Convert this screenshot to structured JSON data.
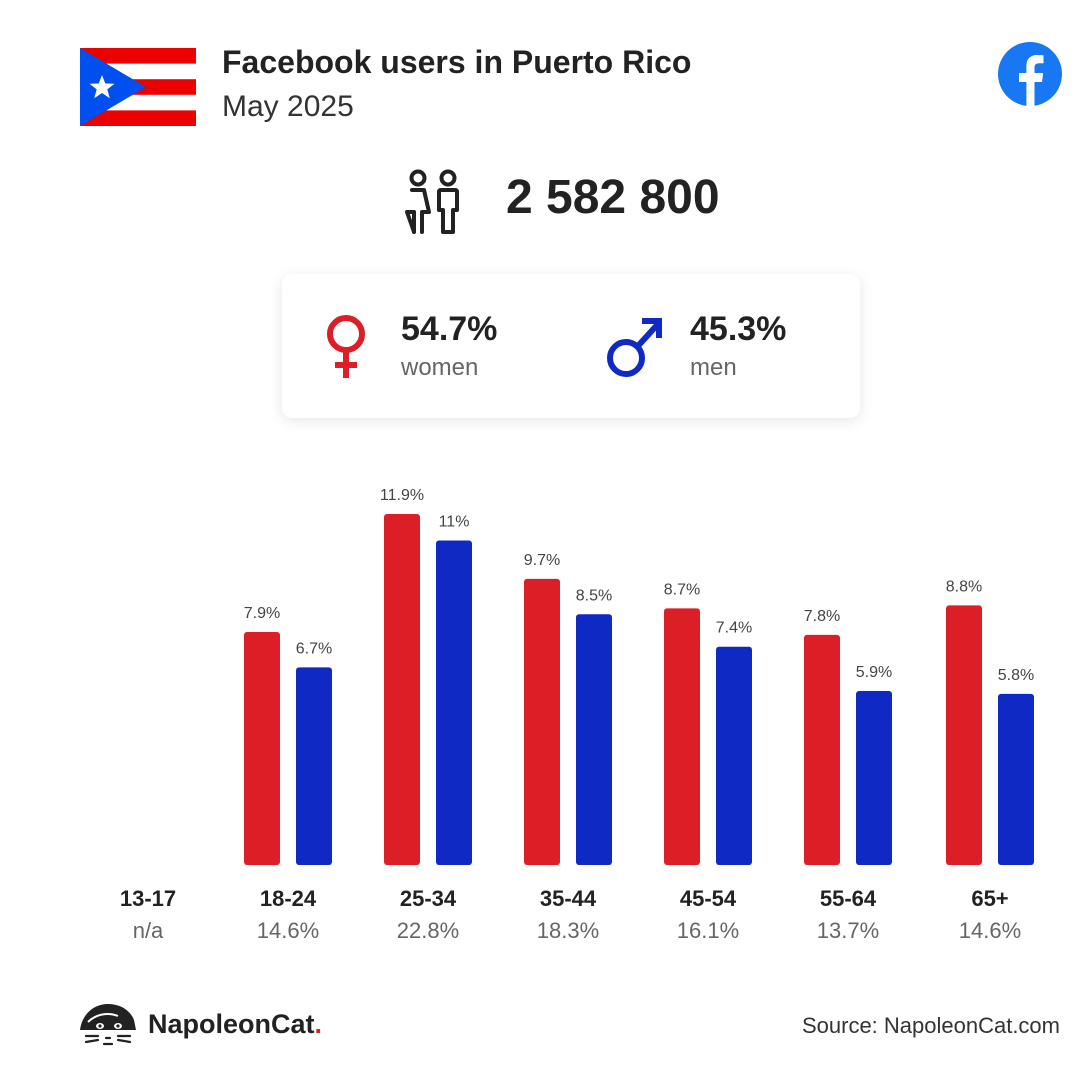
{
  "header": {
    "title": "Facebook users in Puerto Rico",
    "subtitle": "May 2025"
  },
  "total": {
    "value": "2 582 800",
    "icon": "users-icon"
  },
  "gender": {
    "women": {
      "pct": "54.7%",
      "label": "women",
      "icon": "female-symbol-icon"
    },
    "men": {
      "pct": "45.3%",
      "label": "men",
      "icon": "male-symbol-icon"
    }
  },
  "footer": {
    "brand": "NapoleonCat",
    "brand_dot": ".",
    "source": "Source: NapoleonCat.com"
  },
  "colors": {
    "women": "#dc1f26",
    "men": "#0f2ac4",
    "facebook": "#1877f2"
  },
  "chart_data": {
    "type": "bar",
    "categories": [
      "13-17",
      "18-24",
      "25-34",
      "35-44",
      "45-54",
      "55-64",
      "65+"
    ],
    "category_totals": [
      "n/a",
      "14.6%",
      "22.8%",
      "18.3%",
      "16.1%",
      "13.7%",
      "14.6%"
    ],
    "series": [
      {
        "name": "women",
        "values": [
          null,
          7.9,
          11.9,
          9.7,
          8.7,
          7.8,
          8.8
        ],
        "labels": [
          "",
          "7.9%",
          "11.9%",
          "9.7%",
          "8.7%",
          "7.8%",
          "8.8%"
        ]
      },
      {
        "name": "men",
        "values": [
          null,
          6.7,
          11,
          8.5,
          7.4,
          5.9,
          5.8
        ],
        "labels": [
          "",
          "6.7%",
          "11%",
          "8.5%",
          "7.4%",
          "5.9%",
          "5.8%"
        ]
      }
    ],
    "ylim": [
      0,
      11.9
    ],
    "grid": false
  }
}
